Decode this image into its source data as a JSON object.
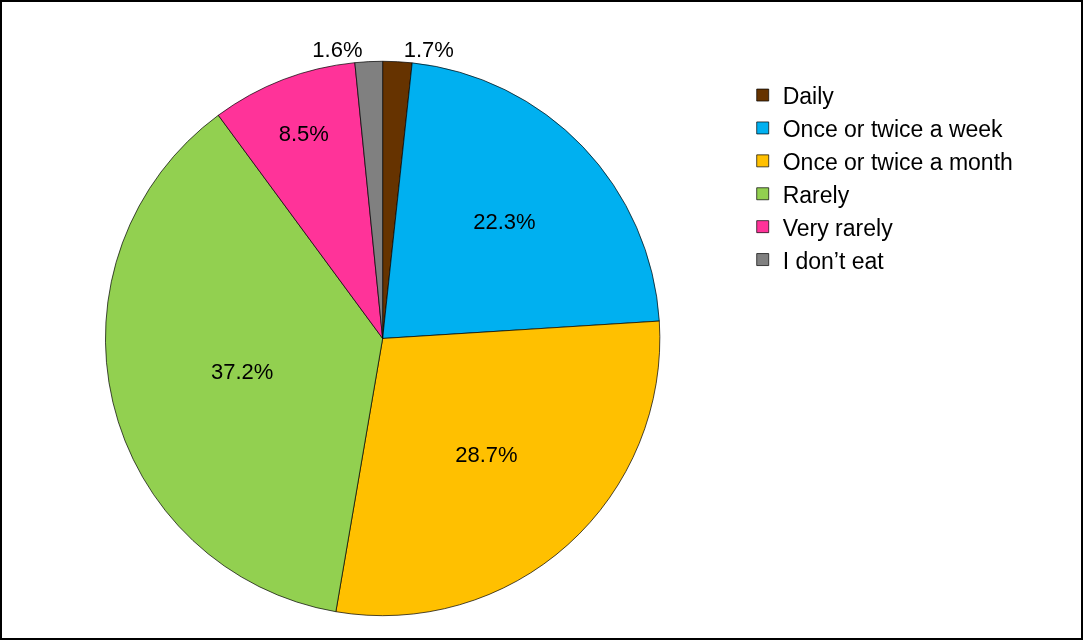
{
  "chart_data": {
    "type": "pie",
    "categories": [
      "Daily",
      "Once or twice a week",
      "Once or twice a month",
      "Rarely",
      "Very rarely",
      "I don’t eat"
    ],
    "values": [
      1.7,
      22.3,
      28.7,
      37.2,
      8.5,
      1.6
    ],
    "value_labels": [
      "1.7%",
      "22.3%",
      "28.7%",
      "37.2%",
      "8.5%",
      "1.6%"
    ],
    "colors": [
      "#663300",
      "#00b0f0",
      "#ffc000",
      "#92d050",
      "#ff3399",
      "#808080"
    ],
    "legend": "right"
  }
}
